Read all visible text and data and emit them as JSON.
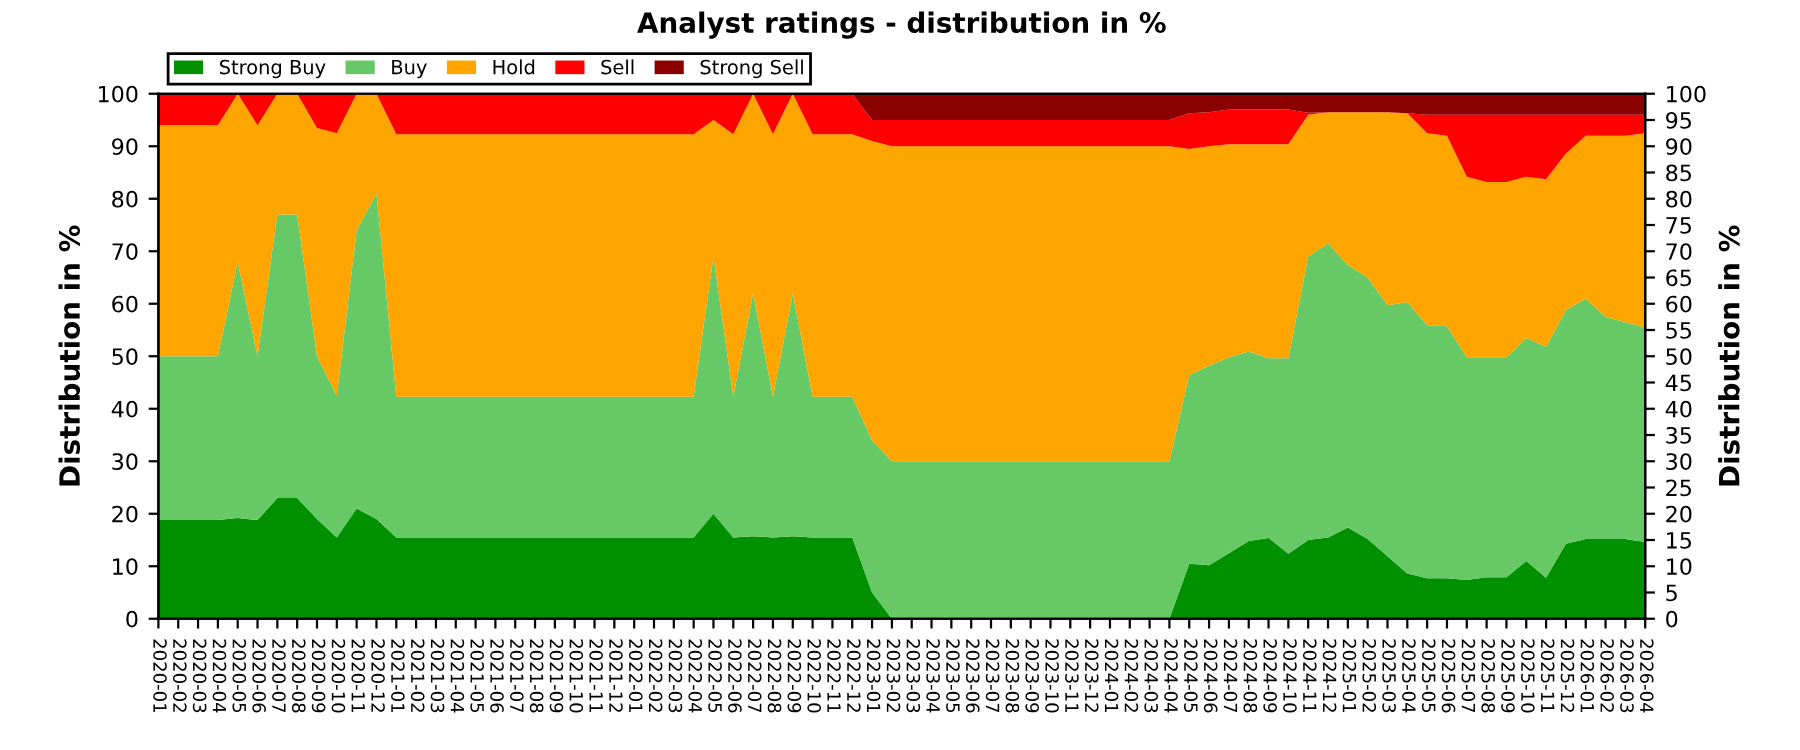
{
  "chart_data": {
    "type": "area",
    "stacked": true,
    "title": "Analyst ratings - distribution in %",
    "ylabel": "Distribution in %",
    "y2label": "Distribution in %",
    "categories": [
      "2020-01",
      "2020-02",
      "2020-03",
      "2020-04",
      "2020-05",
      "2020-06",
      "2020-07",
      "2020-08",
      "2020-09",
      "2020-10",
      "2020-11",
      "2020-12",
      "2021-01",
      "2021-02",
      "2021-03",
      "2021-04",
      "2021-05",
      "2021-06",
      "2021-07",
      "2021-08",
      "2021-09",
      "2021-10",
      "2021-11",
      "2021-12",
      "2022-01",
      "2022-02",
      "2022-03",
      "2022-04",
      "2022-05",
      "2022-06",
      "2022-07",
      "2022-08",
      "2022-09",
      "2022-10",
      "2022-11",
      "2022-12",
      "2023-01",
      "2023-02",
      "2023-03",
      "2023-04",
      "2023-05",
      "2023-06",
      "2023-07",
      "2023-08",
      "2023-09",
      "2023-10",
      "2023-11",
      "2023-12",
      "2024-01",
      "2024-02",
      "2024-03",
      "2024-04",
      "2024-05",
      "2024-06",
      "2024-07",
      "2024-08",
      "2024-09",
      "2024-10",
      "2024-11",
      "2024-12",
      "2025-01",
      "2025-02",
      "2025-03",
      "2025-04",
      "2025-05",
      "2025-06",
      "2025-07",
      "2025-08",
      "2025-09",
      "2025-10",
      "2025-11",
      "2025-12",
      "2026-01",
      "2026-02",
      "2026-03",
      "2026-04"
    ],
    "series": [
      {
        "name": "Strong Buy",
        "color": "#009000",
        "values": [
          18.8,
          18.8,
          18.8,
          18.8,
          19.2,
          18.8,
          23,
          23,
          19,
          15.5,
          21,
          19,
          15.5,
          15.5,
          15.5,
          15.5,
          15.5,
          15.5,
          15.5,
          15.5,
          15.5,
          15.5,
          15.5,
          15.5,
          15.5,
          15.5,
          15.5,
          15.5,
          20,
          15.5,
          15.7,
          15.5,
          15.7,
          15.5,
          15.5,
          15.5,
          5,
          0,
          0,
          0,
          0,
          0,
          0,
          0,
          0,
          0,
          0,
          0,
          0,
          0,
          0,
          0,
          10.5,
          10.2,
          12.5,
          14.8,
          15.4,
          12.4,
          15,
          15.5,
          17.4,
          15.2,
          11.9,
          8.6,
          7.7,
          7.7,
          7.4,
          7.9,
          7.9,
          11,
          7.8,
          14.3,
          15.2,
          15.2,
          15.2,
          14.6
        ]
      },
      {
        "name": "Buy",
        "color": "#66c966",
        "values": [
          31.2,
          31.2,
          31.2,
          31.2,
          48.8,
          31.2,
          54,
          54,
          31,
          27,
          53,
          62,
          26.8,
          26.8,
          26.8,
          26.8,
          26.8,
          26.8,
          26.8,
          26.8,
          26.8,
          26.8,
          26.8,
          26.8,
          26.8,
          26.8,
          26.8,
          26.8,
          49,
          26.8,
          46.3,
          26.8,
          46.3,
          26.8,
          26.8,
          26.8,
          29,
          30,
          30,
          30,
          30,
          30,
          30,
          30,
          30,
          30,
          30,
          30,
          30,
          30,
          30,
          30,
          36,
          38,
          37.3,
          36.1,
          34.2,
          37.2,
          54,
          56,
          50,
          49.8,
          47.8,
          51.7,
          48.2,
          48,
          42.4,
          41.9,
          41.9,
          42.5,
          44,
          44.5,
          45.8,
          42.3,
          41.3,
          40.9
        ]
      },
      {
        "name": "Hold",
        "color": "#ffa500",
        "values": [
          44,
          44,
          44,
          44,
          32,
          44,
          23,
          23,
          43.5,
          50,
          26,
          19,
          50,
          50,
          50,
          50,
          50,
          50,
          50,
          50,
          50,
          50,
          50,
          50,
          50,
          50,
          50,
          50,
          26,
          50,
          38,
          50,
          38,
          50,
          50,
          50,
          57,
          60,
          60,
          60,
          60,
          60,
          60,
          60,
          60,
          60,
          60,
          60,
          60,
          60,
          60,
          60,
          43,
          41.8,
          40.6,
          39.5,
          40.8,
          40.8,
          27,
          25,
          29.1,
          31.5,
          36.8,
          36,
          36.6,
          36.3,
          34.4,
          33.4,
          33.4,
          30.7,
          31.9,
          29.8,
          31,
          34.5,
          35.5,
          37
        ]
      },
      {
        "name": "Sell",
        "color": "#ff0000",
        "values": [
          6,
          6,
          6,
          6,
          0,
          6,
          0,
          0,
          6.5,
          7.5,
          0,
          0,
          7.7,
          7.7,
          7.7,
          7.7,
          7.7,
          7.7,
          7.7,
          7.7,
          7.7,
          7.7,
          7.7,
          7.7,
          7.7,
          7.7,
          7.7,
          7.7,
          5,
          7.7,
          0,
          7.7,
          0,
          7.7,
          7.7,
          7.7,
          4,
          5,
          5,
          5,
          5,
          5,
          5,
          5,
          5,
          5,
          5,
          5,
          5,
          5,
          5,
          5,
          6.8,
          6.5,
          6.6,
          6.6,
          6.6,
          6.6,
          0.4,
          0,
          0,
          0,
          0,
          0,
          3.5,
          4,
          11.8,
          12.8,
          12.8,
          11.8,
          12.3,
          7.4,
          4,
          4,
          4,
          3.5
        ]
      },
      {
        "name": "Strong Sell",
        "color": "#8b0000",
        "values": [
          0,
          0,
          0,
          0,
          0,
          0,
          0,
          0,
          0,
          0,
          0,
          0,
          0,
          0,
          0,
          0,
          0,
          0,
          0,
          0,
          0,
          0,
          0,
          0,
          0,
          0,
          0,
          0,
          0,
          0,
          0,
          0,
          0,
          0,
          0,
          0,
          5,
          5,
          5,
          5,
          5,
          5,
          5,
          5,
          5,
          5,
          5,
          5,
          5,
          5,
          5,
          5,
          3.7,
          3.5,
          3,
          3,
          3,
          3,
          3.6,
          3.5,
          3.5,
          3.5,
          3.5,
          3.7,
          4,
          4,
          4,
          4,
          4,
          4,
          4,
          4,
          4,
          4,
          4,
          4
        ]
      }
    ],
    "ylim": [
      0,
      100
    ],
    "yticks": [
      0,
      10,
      20,
      30,
      40,
      50,
      60,
      70,
      80,
      90,
      100
    ],
    "y2lim": [
      0,
      100
    ],
    "y2ticks": [
      0,
      5,
      10,
      15,
      20,
      25,
      30,
      35,
      40,
      45,
      50,
      55,
      60,
      65,
      70,
      75,
      80,
      85,
      90,
      95,
      100
    ],
    "legend": "top left"
  }
}
